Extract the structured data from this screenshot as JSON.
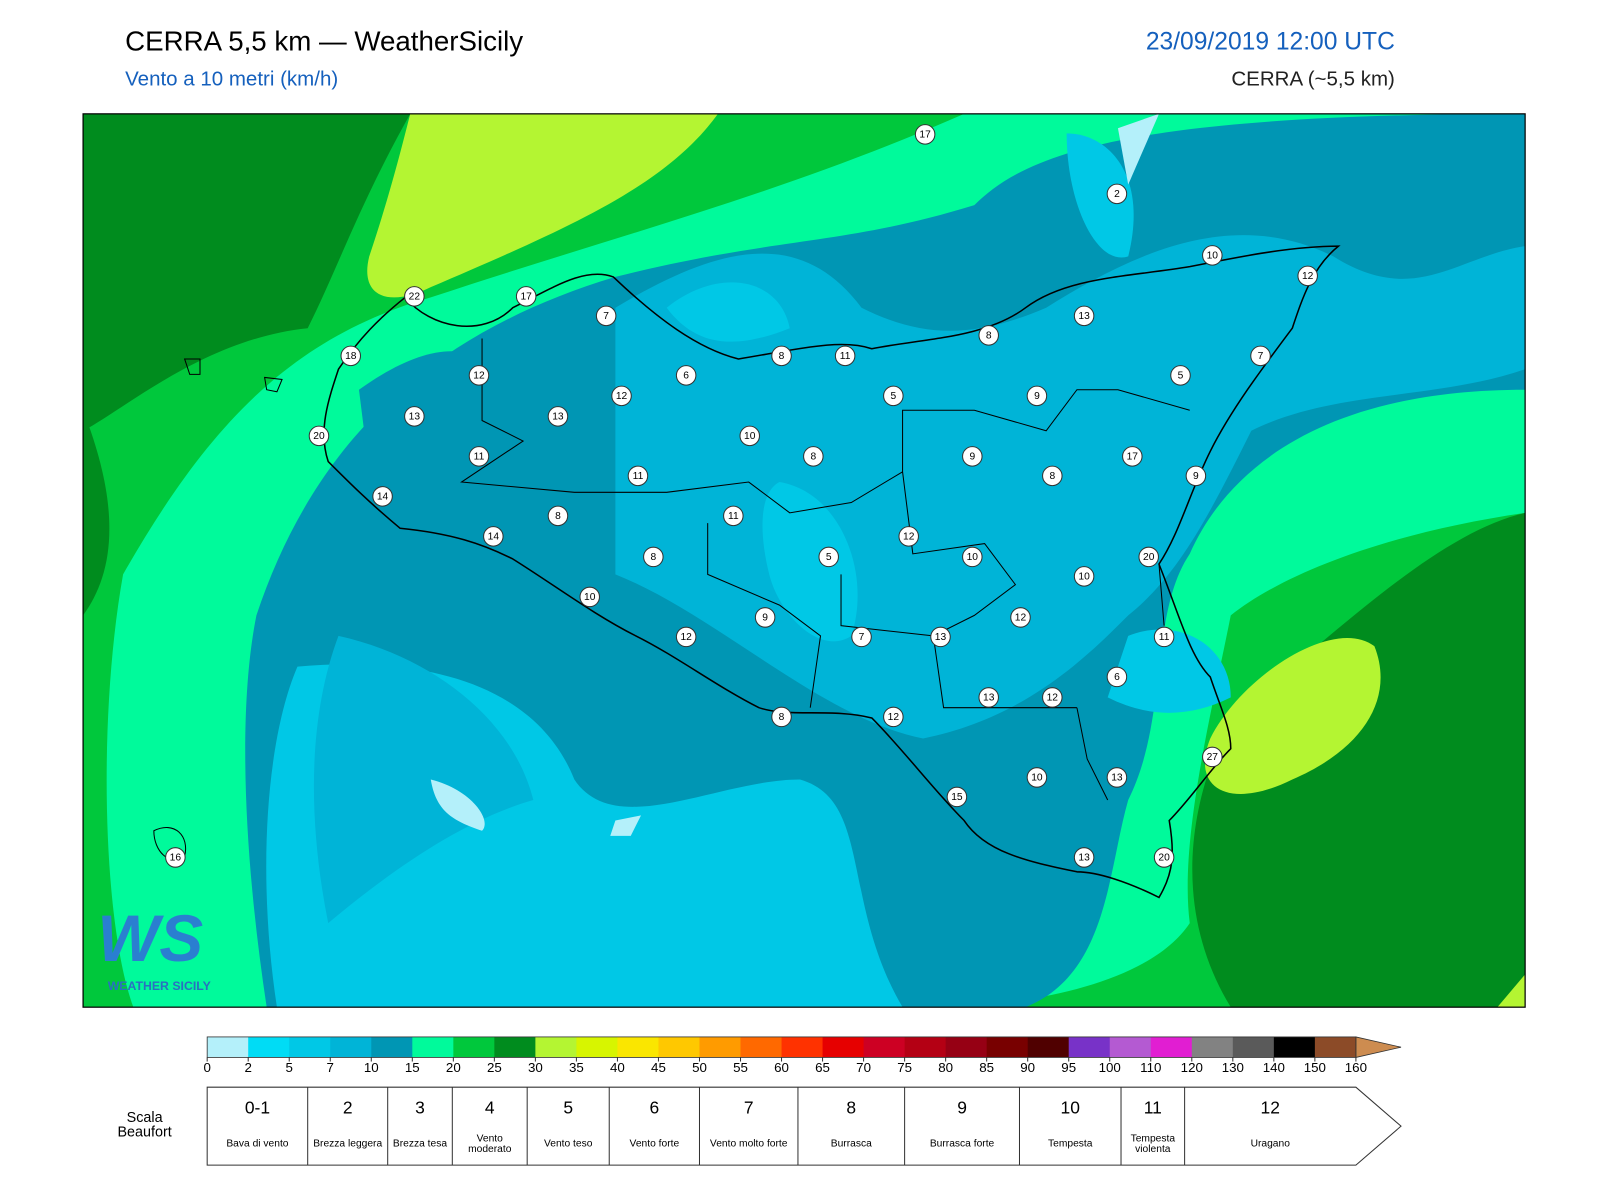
{
  "header": {
    "title": "CERRA 5,5 km — WeatherSicily",
    "subtitle": "Vento a 10 metri (km/h)",
    "date": "23/09/2019 12:00 UTC",
    "model": "CERRA (~5,5 km)"
  },
  "map": {
    "stations": [
      17,
      2,
      10,
      12,
      22,
      17,
      7,
      13,
      8,
      18,
      8,
      11,
      7,
      12,
      6,
      5,
      12,
      5,
      9,
      13,
      13,
      20,
      10,
      11,
      8,
      9,
      17,
      11,
      8,
      9,
      14,
      11,
      8,
      14,
      12,
      8,
      5,
      10,
      20,
      10,
      10,
      9,
      12,
      12,
      7,
      13,
      11,
      6,
      13,
      12,
      8,
      12,
      27,
      10,
      13,
      15,
      16,
      13,
      20
    ],
    "logo": {
      "mark": "WS",
      "text": "WEATHER SICILY"
    }
  },
  "colorbar": {
    "ticks": [
      0,
      2,
      5,
      7,
      10,
      15,
      20,
      25,
      30,
      35,
      40,
      45,
      50,
      55,
      60,
      65,
      70,
      75,
      80,
      85,
      90,
      95,
      100,
      110,
      120,
      130,
      140,
      150,
      160
    ],
    "colors": [
      "#b4f0fa",
      "#00dcf5",
      "#00c8e6",
      "#00b4d7",
      "#0096b4",
      "#00fa9b",
      "#00c83c",
      "#008c1e",
      "#b4f532",
      "#d7f500",
      "#fae600",
      "#ffc800",
      "#ff9b00",
      "#ff6900",
      "#ff3200",
      "#e60000",
      "#cd0023",
      "#b40014",
      "#960014",
      "#780000",
      "#500000",
      "#7832c8",
      "#b45ad2",
      "#e11ed2",
      "#828282",
      "#5a5a5a",
      "#000000",
      "#8c4b28",
      "#cd8c50"
    ],
    "extend_color": "#cd8c50"
  },
  "beaufort": {
    "label": "Scala Beaufort",
    "entries": [
      {
        "force": "0-1",
        "description": "Bava di vento"
      },
      {
        "force": "2",
        "description": "Brezza leggera"
      },
      {
        "force": "3",
        "description": "Brezza tesa"
      },
      {
        "force": "4",
        "description": "Vento moderato"
      },
      {
        "force": "5",
        "description": "Vento teso"
      },
      {
        "force": "6",
        "description": "Vento forte"
      },
      {
        "force": "7",
        "description": "Vento molto forte"
      },
      {
        "force": "8",
        "description": "Burrasca"
      },
      {
        "force": "9",
        "description": "Burrasca forte"
      },
      {
        "force": "10",
        "description": "Tempesta"
      },
      {
        "force": "11",
        "description": "Tempesta violenta"
      },
      {
        "force": "12",
        "description": "Uragano"
      }
    ]
  }
}
